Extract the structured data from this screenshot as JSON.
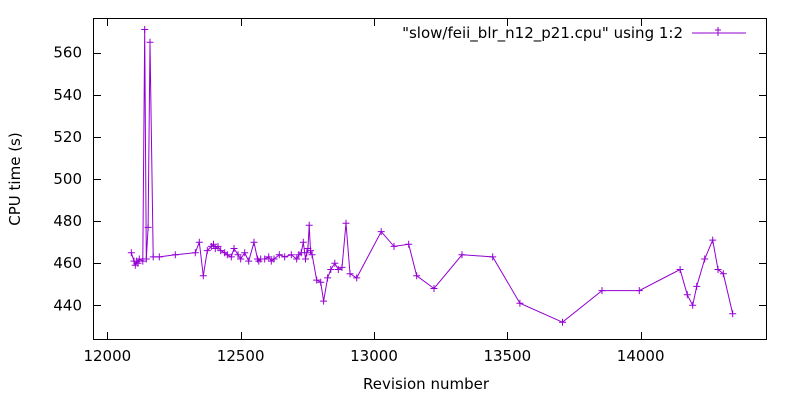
{
  "chart_data": {
    "type": "line",
    "xlabel": "Revision number",
    "ylabel": "CPU time (s)",
    "xlim": [
      11950,
      14470
    ],
    "ylim": [
      424,
      576
    ],
    "xticks": [
      12000,
      12500,
      13000,
      13500,
      14000
    ],
    "yticks": [
      440,
      460,
      480,
      500,
      520,
      540,
      560
    ],
    "grid": false,
    "legend_position": "top-right",
    "series": [
      {
        "name": "\"slow/feii_blr_n12_p21.cpu\" using 1:2",
        "color": "#9400d3",
        "marker": "plus",
        "x": [
          12090,
          12100,
          12105,
          12110,
          12115,
          12120,
          12133,
          12140,
          12146,
          12153,
          12160,
          12172,
          12195,
          12255,
          12330,
          12345,
          12360,
          12375,
          12390,
          12398,
          12405,
          12415,
          12425,
          12440,
          12450,
          12465,
          12475,
          12490,
          12500,
          12515,
          12530,
          12550,
          12563,
          12568,
          12575,
          12590,
          12605,
          12615,
          12625,
          12645,
          12665,
          12690,
          12710,
          12718,
          12727,
          12735,
          12743,
          12748,
          12752,
          12757,
          12762,
          12768,
          12785,
          12800,
          12811,
          12826,
          12838,
          12853,
          12866,
          12880,
          12895,
          12910,
          12935,
          13027,
          13075,
          13130,
          13160,
          13225,
          13330,
          13445,
          13547,
          13707,
          13855,
          13995,
          14148,
          14175,
          14195,
          14210,
          14240,
          14270,
          14290,
          14310,
          14345
        ],
        "y": [
          465,
          461,
          459,
          461,
          460,
          462,
          461,
          571,
          462,
          477,
          565,
          463,
          463,
          464,
          465,
          470,
          454,
          466,
          468,
          469,
          467,
          468,
          466,
          465,
          464,
          463,
          467,
          464,
          462,
          465,
          461,
          470,
          462,
          461,
          462,
          462,
          463,
          461,
          462,
          464,
          463,
          464,
          462,
          464,
          465,
          470,
          462,
          465,
          467,
          478,
          466,
          464,
          452,
          451,
          442,
          453,
          457,
          460,
          457,
          458,
          479,
          455,
          453,
          475,
          468,
          469,
          454,
          448,
          464,
          463,
          441,
          432,
          447,
          447,
          457,
          445,
          440,
          449,
          462,
          471,
          457,
          455,
          436
        ]
      }
    ]
  }
}
